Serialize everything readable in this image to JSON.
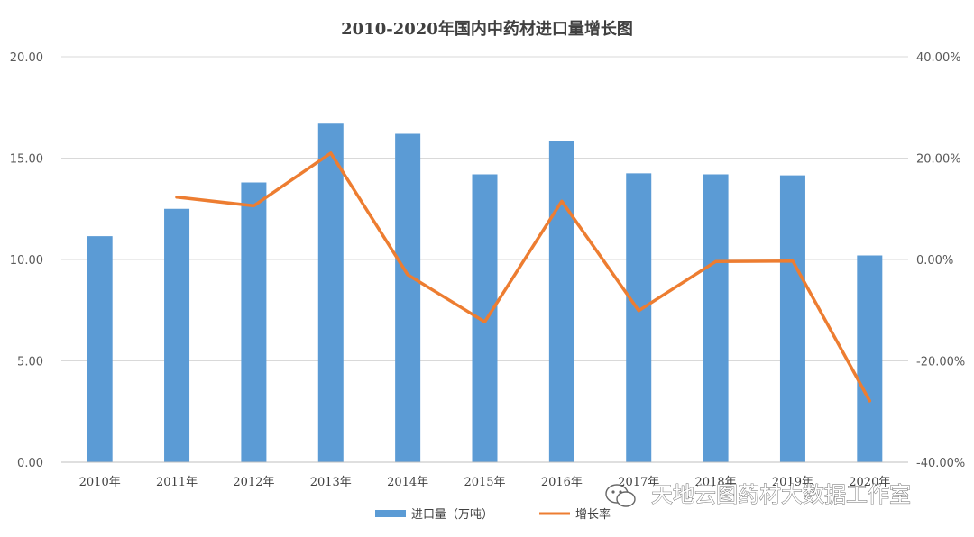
{
  "chart_data": {
    "type": "bar",
    "title": "2010-2020年国内中药材进口量增长图",
    "categories": [
      "2010年",
      "2011年",
      "2012年",
      "2013年",
      "2014年",
      "2015年",
      "2016年",
      "2017年",
      "2018年",
      "2019年",
      "2020年"
    ],
    "series": [
      {
        "name": "进口量（万吨）",
        "type": "bar",
        "axis": "left",
        "color": "#5B9BD5",
        "values": [
          11.15,
          12.5,
          13.8,
          16.7,
          16.2,
          14.2,
          15.85,
          14.25,
          14.2,
          14.15,
          10.2
        ]
      },
      {
        "name": "增长率",
        "type": "line",
        "axis": "right",
        "color": "#ED7D31",
        "values": [
          null,
          12.3,
          10.6,
          21.0,
          -3.0,
          -12.3,
          11.5,
          -10.1,
          -0.4,
          -0.3,
          -27.9
        ]
      }
    ],
    "ylim_left": [
      0,
      20
    ],
    "ylim_right": [
      -40,
      40
    ],
    "y_ticks_left": [
      "0.00",
      "5.00",
      "10.00",
      "15.00",
      "20.00"
    ],
    "y_ticks_right": [
      "-40.00%",
      "-20.00%",
      "0.00%",
      "20.00%",
      "40.00%"
    ],
    "grid": true,
    "legend_position": "bottom"
  },
  "watermark": "天地云图药材大数据工作室"
}
